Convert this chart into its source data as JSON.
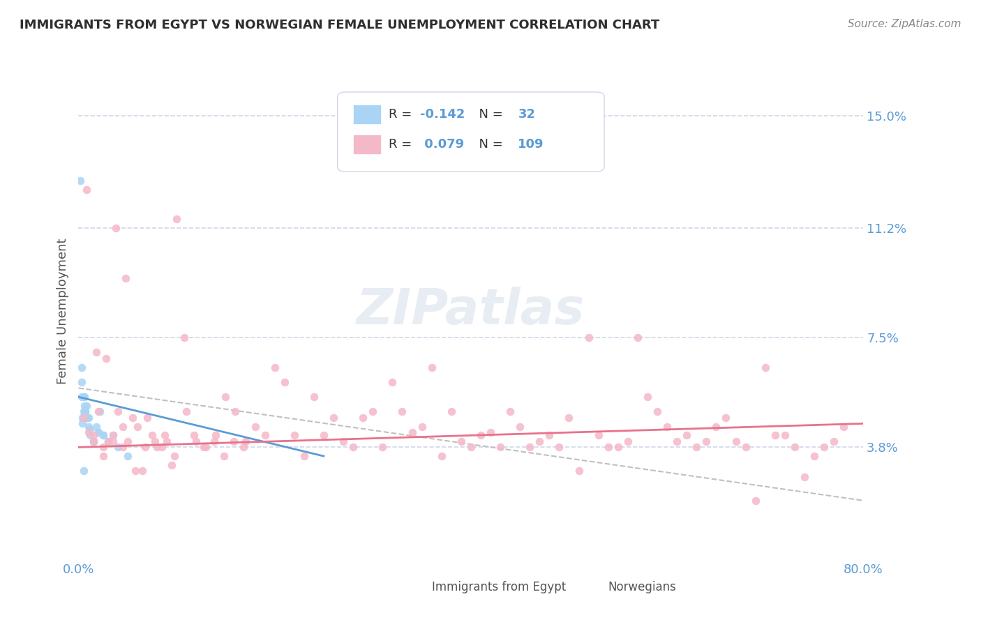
{
  "title": "IMMIGRANTS FROM EGYPT VS NORWEGIAN FEMALE UNEMPLOYMENT CORRELATION CHART",
  "source": "Source: ZipAtlas.com",
  "ylabel": "Female Unemployment",
  "xlabel": "",
  "xmin": 0.0,
  "xmax": 0.8,
  "ymin": 0.0,
  "ymax": 0.168,
  "yticks": [
    0.038,
    0.075,
    0.112,
    0.15
  ],
  "ytick_labels": [
    "3.8%",
    "7.5%",
    "11.2%",
    "15.0%"
  ],
  "xticks": [
    0.0,
    0.2,
    0.4,
    0.6,
    0.8
  ],
  "xtick_labels": [
    "0.0%",
    "",
    "",
    "",
    "80.0%"
  ],
  "legend_entry1": {
    "label": "R = -0.142   N =  32",
    "color": "#aad4f5"
  },
  "legend_entry2": {
    "label": "R =  0.079   N = 109",
    "color": "#f5b8c8"
  },
  "scatter_blue_x": [
    0.002,
    0.003,
    0.004,
    0.005,
    0.006,
    0.007,
    0.008,
    0.01,
    0.012,
    0.015,
    0.018,
    0.02,
    0.022,
    0.025,
    0.03,
    0.035,
    0.04,
    0.05,
    0.005,
    0.003,
    0.008,
    0.006,
    0.01,
    0.004,
    0.007,
    0.012,
    0.009,
    0.015,
    0.003,
    0.02,
    0.025,
    0.005
  ],
  "scatter_blue_y": [
    0.128,
    0.055,
    0.048,
    0.05,
    0.052,
    0.05,
    0.048,
    0.045,
    0.042,
    0.04,
    0.045,
    0.043,
    0.05,
    0.042,
    0.04,
    0.042,
    0.038,
    0.035,
    0.055,
    0.06,
    0.052,
    0.055,
    0.048,
    0.046,
    0.05,
    0.044,
    0.048,
    0.04,
    0.065,
    0.043,
    0.042,
    0.03
  ],
  "scatter_pink_x": [
    0.005,
    0.01,
    0.015,
    0.02,
    0.025,
    0.03,
    0.035,
    0.04,
    0.045,
    0.05,
    0.06,
    0.07,
    0.08,
    0.09,
    0.1,
    0.12,
    0.14,
    0.16,
    0.18,
    0.2,
    0.22,
    0.24,
    0.26,
    0.28,
    0.3,
    0.32,
    0.34,
    0.36,
    0.38,
    0.4,
    0.42,
    0.44,
    0.46,
    0.48,
    0.5,
    0.52,
    0.54,
    0.56,
    0.58,
    0.6,
    0.62,
    0.64,
    0.66,
    0.68,
    0.7,
    0.72,
    0.74,
    0.76,
    0.78,
    0.015,
    0.025,
    0.035,
    0.045,
    0.055,
    0.065,
    0.075,
    0.085,
    0.095,
    0.11,
    0.13,
    0.15,
    0.17,
    0.19,
    0.21,
    0.23,
    0.25,
    0.27,
    0.29,
    0.31,
    0.33,
    0.35,
    0.37,
    0.39,
    0.41,
    0.43,
    0.45,
    0.47,
    0.49,
    0.51,
    0.53,
    0.55,
    0.57,
    0.59,
    0.61,
    0.63,
    0.65,
    0.67,
    0.69,
    0.71,
    0.73,
    0.75,
    0.77,
    0.008,
    0.018,
    0.028,
    0.038,
    0.048,
    0.058,
    0.068,
    0.078,
    0.088,
    0.098,
    0.108,
    0.118,
    0.128,
    0.138,
    0.148,
    0.158,
    0.168
  ],
  "scatter_pink_y": [
    0.048,
    0.043,
    0.04,
    0.05,
    0.038,
    0.04,
    0.042,
    0.05,
    0.038,
    0.04,
    0.045,
    0.048,
    0.038,
    0.04,
    0.115,
    0.04,
    0.042,
    0.05,
    0.045,
    0.065,
    0.042,
    0.055,
    0.048,
    0.038,
    0.05,
    0.06,
    0.043,
    0.065,
    0.05,
    0.038,
    0.043,
    0.05,
    0.038,
    0.042,
    0.048,
    0.075,
    0.038,
    0.04,
    0.055,
    0.045,
    0.042,
    0.04,
    0.048,
    0.038,
    0.065,
    0.042,
    0.028,
    0.038,
    0.045,
    0.042,
    0.035,
    0.04,
    0.045,
    0.048,
    0.03,
    0.042,
    0.038,
    0.032,
    0.05,
    0.038,
    0.055,
    0.04,
    0.042,
    0.06,
    0.035,
    0.042,
    0.04,
    0.048,
    0.038,
    0.05,
    0.045,
    0.035,
    0.04,
    0.042,
    0.038,
    0.045,
    0.04,
    0.038,
    0.03,
    0.042,
    0.038,
    0.075,
    0.05,
    0.04,
    0.038,
    0.045,
    0.04,
    0.02,
    0.042,
    0.038,
    0.035,
    0.04,
    0.125,
    0.07,
    0.068,
    0.112,
    0.095,
    0.03,
    0.038,
    0.04,
    0.042,
    0.035,
    0.075,
    0.042,
    0.038,
    0.04,
    0.035,
    0.04,
    0.038
  ],
  "blue_line_x": [
    0.0,
    0.25
  ],
  "blue_line_y": [
    0.055,
    0.035
  ],
  "pink_line_x": [
    0.0,
    0.8
  ],
  "pink_line_y": [
    0.038,
    0.046
  ],
  "dashed_line_x": [
    0.0,
    0.8
  ],
  "dashed_line_y": [
    0.058,
    0.02
  ],
  "bg_color": "#ffffff",
  "grid_color": "#d0d8e8",
  "tick_color": "#5b9bd5",
  "title_color": "#2e2e2e",
  "watermark": "ZIPatlas",
  "scatter_blue_color": "#aad4f5",
  "scatter_pink_color": "#f5b8c8",
  "blue_line_color": "#5b9bd5",
  "pink_line_color": "#e8728a",
  "dashed_line_color": "#c0c0c0"
}
